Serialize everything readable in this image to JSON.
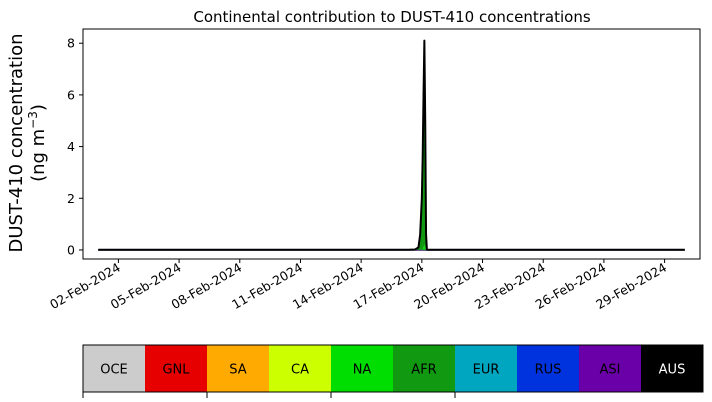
{
  "chart_data": {
    "type": "area",
    "title": "Continental contribution to DUST-410 concentrations",
    "ylabel_line1": "DUST-410 concentration",
    "ylabel_line2_prefix": "(ng m",
    "ylabel_line2_sup": "−3",
    "ylabel_line2_suffix": ")",
    "xlabel": "",
    "ylim": [
      -0.35,
      8.55
    ],
    "yticks": [
      0,
      2,
      4,
      6,
      8
    ],
    "x_start": "2024-02-01T00:00",
    "x_end": "2024-03-01T00:00",
    "xlim": [
      "2024-01-31T06:00",
      "2024-03-01T18:00"
    ],
    "xticks": [
      "2024-02-02",
      "2024-02-05",
      "2024-02-08",
      "2024-02-11",
      "2024-02-14",
      "2024-02-17",
      "2024-02-20",
      "2024-02-23",
      "2024-02-26",
      "2024-02-29"
    ],
    "xtick_labels": [
      "02-Feb-2024",
      "05-Feb-2024",
      "08-Feb-2024",
      "11-Feb-2024",
      "14-Feb-2024",
      "17-Feb-2024",
      "20-Feb-2024",
      "23-Feb-2024",
      "26-Feb-2024",
      "29-Feb-2024"
    ],
    "categories": [
      "OCE",
      "GNL",
      "SA",
      "CA",
      "NA",
      "AFR",
      "EUR",
      "RUS",
      "ASI",
      "AUS"
    ],
    "colors": [
      "#cccccc",
      "#e60000",
      "#ffaa00",
      "#ccff00",
      "#00dd00",
      "#119911",
      "#00a6bf",
      "#0033dd",
      "#6a00a8",
      "#000000"
    ],
    "label_colors": [
      "#000000",
      "#000000",
      "#000000",
      "#000000",
      "#000000",
      "#000000",
      "#000000",
      "#000000",
      "#000000",
      "#ffffff"
    ],
    "event": {
      "x": [
        "2024-02-16T08:00",
        "2024-02-16T16:00",
        "2024-02-16T20:00",
        "2024-02-16T22:00",
        "2024-02-17T00:00",
        "2024-02-17T01:00",
        "2024-02-17T02:00",
        "2024-02-17T03:00",
        "2024-02-17T04:00",
        "2024-02-17T05:00",
        "2024-02-17T06:00"
      ],
      "total": [
        0,
        0.02,
        0.1,
        0.6,
        2.0,
        3.6,
        6.0,
        8.1,
        5.0,
        0.6,
        0
      ],
      "AFR": [
        0,
        0.02,
        0.09,
        0.55,
        1.9,
        3.4,
        5.3,
        5.5,
        4.4,
        0.5,
        0
      ],
      "NA": [
        0,
        0,
        0,
        0.01,
        0.02,
        0.05,
        0.1,
        0.2,
        0.1,
        0.02,
        0
      ],
      "RUS": [
        0,
        0,
        0.01,
        0.04,
        0.08,
        0.15,
        0.6,
        2.4,
        0.5,
        0.08,
        0
      ]
    },
    "baseline_total": 0.01
  }
}
